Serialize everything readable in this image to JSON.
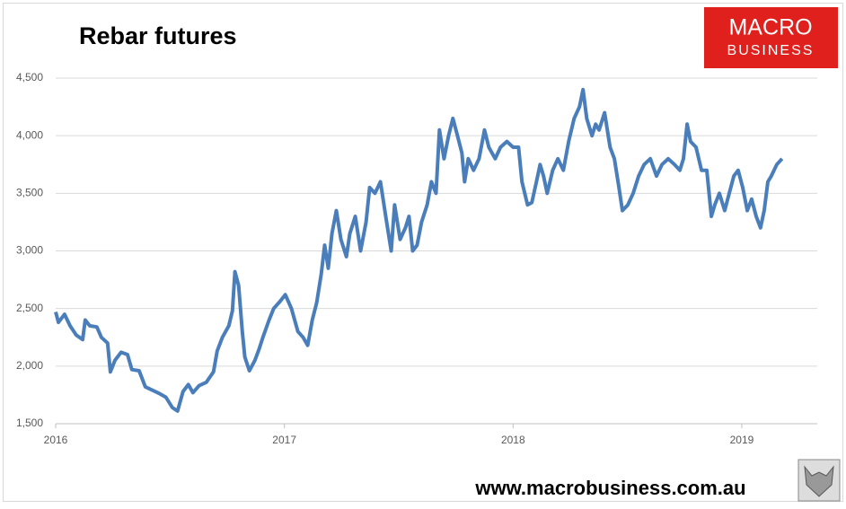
{
  "chart_data": {
    "type": "line",
    "title": "Rebar futures",
    "logo": [
      "MACRO",
      "BUSINESS"
    ],
    "footer": "www.macrobusiness.com.au",
    "xlim": [
      2016,
      2019.33
    ],
    "xticks": [
      2016,
      2017,
      2018,
      2019
    ],
    "ylim": [
      1500,
      4500
    ],
    "yticks": [
      {
        "value": 1500,
        "label": "1,500"
      },
      {
        "value": 2000,
        "label": "2,000"
      },
      {
        "value": 2500,
        "label": "2,500"
      },
      {
        "value": 3000,
        "label": "3,000"
      },
      {
        "value": 3500,
        "label": "3,500"
      },
      {
        "value": 4000,
        "label": "4,000"
      },
      {
        "value": 4500,
        "label": "4,500"
      }
    ],
    "grid": true,
    "x": [
      2016,
      2016.012,
      2016.039,
      2016.063,
      2016.09,
      2016.118,
      2016.129,
      2016.149,
      2016.18,
      2016.2,
      2016.227,
      2016.239,
      2016.259,
      2016.286,
      2016.314,
      2016.333,
      2016.365,
      2016.392,
      2016.424,
      2016.455,
      2016.482,
      2016.51,
      2016.533,
      2016.557,
      2016.58,
      2016.6,
      2016.627,
      2016.659,
      2016.69,
      2016.706,
      2016.729,
      2016.757,
      2016.773,
      2016.784,
      2016.8,
      2016.816,
      2016.827,
      2016.847,
      2016.871,
      2016.89,
      2016.906,
      2016.933,
      2016.953,
      2016.98,
      2017.004,
      2017.031,
      2017.059,
      2017.082,
      2017.102,
      2017.122,
      2017.141,
      2017.161,
      2017.176,
      2017.192,
      2017.208,
      2017.227,
      2017.247,
      2017.271,
      2017.286,
      2017.31,
      2017.333,
      2017.357,
      2017.373,
      2017.396,
      2017.42,
      2017.443,
      2017.467,
      2017.482,
      2017.506,
      2017.529,
      2017.545,
      2017.561,
      2017.58,
      2017.6,
      2017.624,
      2017.643,
      2017.663,
      2017.678,
      2017.698,
      2017.718,
      2017.737,
      2017.757,
      2017.776,
      2017.788,
      2017.804,
      2017.827,
      2017.851,
      2017.875,
      2017.894,
      2017.922,
      2017.945,
      2017.973,
      2018,
      2018.024,
      2018.039,
      2018.063,
      2018.082,
      2018.102,
      2018.118,
      2018.133,
      2018.149,
      2018.173,
      2018.196,
      2018.22,
      2018.243,
      2018.267,
      2018.29,
      2018.306,
      2018.322,
      2018.345,
      2018.361,
      2018.376,
      2018.4,
      2018.424,
      2018.443,
      2018.463,
      2018.478,
      2018.502,
      2018.525,
      2018.549,
      2018.573,
      2018.6,
      2018.627,
      2018.651,
      2018.678,
      2018.706,
      2018.729,
      2018.745,
      2018.761,
      2018.776,
      2018.8,
      2018.824,
      2018.847,
      2018.867,
      2018.882,
      2018.902,
      2018.925,
      2018.945,
      2018.965,
      2018.984,
      2019.004,
      2019.024,
      2019.043,
      2019.063,
      2019.082,
      2019.098,
      2019.114,
      2019.129,
      2019.153,
      2019.176
    ],
    "series": [
      {
        "color": "#4a7ebb",
        "values": [
          2470,
          2380,
          2450,
          2350,
          2270,
          2230,
          2400,
          2350,
          2340,
          2250,
          2200,
          1950,
          2050,
          2120,
          2100,
          1970,
          1960,
          1820,
          1790,
          1760,
          1730,
          1640,
          1610,
          1780,
          1840,
          1770,
          1830,
          1860,
          1950,
          2130,
          2250,
          2350,
          2480,
          2820,
          2700,
          2300,
          2080,
          1960,
          2050,
          2150,
          2250,
          2400,
          2500,
          2560,
          2620,
          2500,
          2300,
          2250,
          2180,
          2400,
          2550,
          2800,
          3050,
          2850,
          3150,
          3350,
          3100,
          2950,
          3150,
          3300,
          3000,
          3250,
          3550,
          3500,
          3600,
          3300,
          3000,
          3400,
          3100,
          3200,
          3300,
          3000,
          3050,
          3250,
          3400,
          3600,
          3500,
          4050,
          3800,
          4000,
          4150,
          4000,
          3850,
          3600,
          3800,
          3700,
          3800,
          4050,
          3900,
          3800,
          3900,
          3950,
          3900,
          3900,
          3600,
          3400,
          3420,
          3600,
          3750,
          3650,
          3500,
          3700,
          3800,
          3700,
          3950,
          4150,
          4250,
          4400,
          4150,
          4000,
          4100,
          4050,
          4200,
          3900,
          3800,
          3550,
          3350,
          3400,
          3500,
          3650,
          3750,
          3800,
          3650,
          3750,
          3800,
          3750,
          3700,
          3800,
          4100,
          3950,
          3900,
          3700,
          3700,
          3300,
          3400,
          3500,
          3350,
          3500,
          3650,
          3700,
          3550,
          3350,
          3450,
          3300,
          3200,
          3350,
          3600,
          3650,
          3750,
          3800
        ]
      }
    ]
  }
}
